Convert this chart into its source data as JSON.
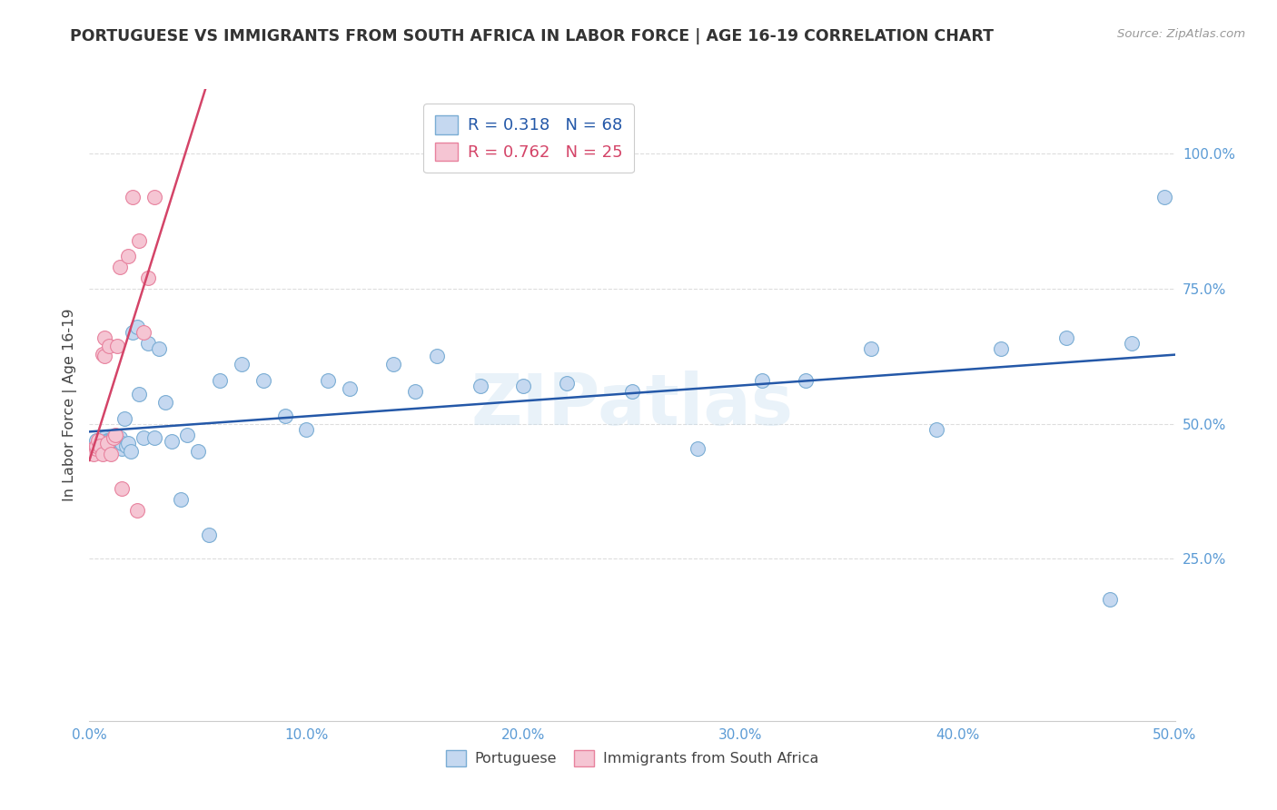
{
  "title": "PORTUGUESE VS IMMIGRANTS FROM SOUTH AFRICA IN LABOR FORCE | AGE 16-19 CORRELATION CHART",
  "source": "Source: ZipAtlas.com",
  "ylabel": "In Labor Force | Age 16-19",
  "xlim": [
    0.0,
    0.5
  ],
  "ylim": [
    -0.05,
    1.12
  ],
  "yticks_right": [
    0.25,
    0.5,
    0.75,
    1.0
  ],
  "ytick_right_labels": [
    "25.0%",
    "50.0%",
    "75.0%",
    "100.0%"
  ],
  "xticks": [
    0.0,
    0.1,
    0.2,
    0.3,
    0.4,
    0.5
  ],
  "xtick_labels": [
    "0.0%",
    "10.0%",
    "20.0%",
    "30.0%",
    "40.0%",
    "50.0%"
  ],
  "R_blue": 0.318,
  "N_blue": 68,
  "R_pink": 0.762,
  "N_pink": 25,
  "blue_color": "#c5d8f0",
  "blue_edge": "#7aadd4",
  "pink_color": "#f5c5d3",
  "pink_edge": "#e8829e",
  "blue_line_color": "#2458a8",
  "pink_line_color": "#d44468",
  "legend_label_blue": "Portuguese",
  "legend_label_pink": "Immigrants from South Africa",
  "blue_x": [
    0.003,
    0.004,
    0.005,
    0.005,
    0.006,
    0.006,
    0.007,
    0.007,
    0.007,
    0.008,
    0.008,
    0.008,
    0.009,
    0.009,
    0.009,
    0.01,
    0.01,
    0.01,
    0.011,
    0.011,
    0.012,
    0.012,
    0.013,
    0.013,
    0.014,
    0.015,
    0.015,
    0.016,
    0.017,
    0.018,
    0.019,
    0.02,
    0.022,
    0.023,
    0.025,
    0.027,
    0.03,
    0.032,
    0.035,
    0.038,
    0.042,
    0.045,
    0.05,
    0.055,
    0.06,
    0.07,
    0.08,
    0.09,
    0.1,
    0.11,
    0.12,
    0.14,
    0.15,
    0.16,
    0.18,
    0.2,
    0.22,
    0.25,
    0.28,
    0.31,
    0.33,
    0.36,
    0.39,
    0.42,
    0.45,
    0.47,
    0.48,
    0.495
  ],
  "blue_y": [
    0.47,
    0.455,
    0.465,
    0.47,
    0.46,
    0.47,
    0.455,
    0.465,
    0.475,
    0.455,
    0.46,
    0.47,
    0.45,
    0.46,
    0.47,
    0.455,
    0.465,
    0.47,
    0.455,
    0.465,
    0.46,
    0.475,
    0.46,
    0.47,
    0.475,
    0.455,
    0.465,
    0.51,
    0.46,
    0.465,
    0.45,
    0.67,
    0.68,
    0.555,
    0.475,
    0.65,
    0.475,
    0.64,
    0.54,
    0.468,
    0.36,
    0.48,
    0.45,
    0.295,
    0.58,
    0.61,
    0.58,
    0.515,
    0.49,
    0.58,
    0.565,
    0.61,
    0.56,
    0.625,
    0.57,
    0.57,
    0.575,
    0.56,
    0.455,
    0.58,
    0.58,
    0.64,
    0.49,
    0.64,
    0.66,
    0.175,
    0.65,
    0.92
  ],
  "pink_x": [
    0.002,
    0.002,
    0.003,
    0.003,
    0.004,
    0.005,
    0.006,
    0.006,
    0.007,
    0.007,
    0.008,
    0.009,
    0.01,
    0.011,
    0.012,
    0.013,
    0.014,
    0.015,
    0.018,
    0.02,
    0.022,
    0.023,
    0.025,
    0.027,
    0.03
  ],
  "pink_y": [
    0.455,
    0.445,
    0.455,
    0.46,
    0.47,
    0.46,
    0.445,
    0.63,
    0.625,
    0.66,
    0.465,
    0.645,
    0.445,
    0.475,
    0.48,
    0.645,
    0.79,
    0.38,
    0.81,
    0.92,
    0.34,
    0.84,
    0.67,
    0.77,
    0.92
  ],
  "watermark": "ZIPatlas",
  "background_color": "#ffffff",
  "grid_color": "#dddddd",
  "axis_color": "#5b9bd5",
  "title_color": "#333333",
  "source_color": "#999999",
  "ylabel_color": "#444444"
}
